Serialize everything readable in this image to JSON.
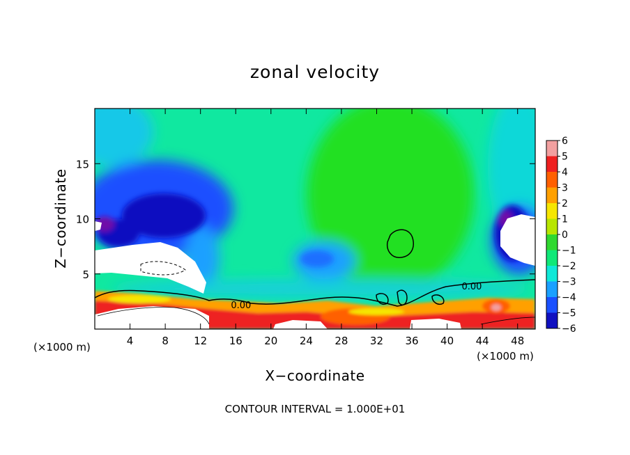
{
  "chart_data": {
    "type": "heatmap",
    "title": "zonal velocity",
    "xlabel": "X−coordinate",
    "ylabel": "Z−coordinate",
    "x_units_left": "(×1000 m)",
    "x_units_right": "(×1000 m)",
    "xlim": [
      0,
      50
    ],
    "ylim": [
      0,
      20
    ],
    "x_ticks": [
      4,
      8,
      12,
      16,
      20,
      24,
      28,
      32,
      36,
      40,
      44,
      48
    ],
    "x_tick_labels": [
      "4",
      "8",
      "12",
      "16",
      "20",
      "24",
      "28",
      "32",
      "36",
      "40",
      "44",
      "48"
    ],
    "y_ticks": [
      5,
      10,
      15
    ],
    "y_tick_labels": [
      "5",
      "10",
      "15"
    ],
    "colorbar": {
      "levels": [
        6,
        5,
        4,
        3,
        2,
        1,
        0,
        -1,
        -2,
        -3,
        -4,
        -5,
        -6
      ],
      "labels": [
        "6",
        "5",
        "4",
        "3",
        "2",
        "1",
        "0",
        "−1",
        "−2",
        "−3",
        "−4",
        "−5",
        "−6"
      ],
      "colors": [
        "#f2a0a0",
        "#ee2020",
        "#ff6000",
        "#ffa000",
        "#f6e600",
        "#b8e600",
        "#30d830",
        "#10e878",
        "#10e8d8",
        "#1aa0ff",
        "#1a50ff",
        "#1010c0",
        "#7010a8"
      ]
    },
    "contour_labels": [
      {
        "text": "0.00",
        "x": 16.6,
        "y": 2.2
      },
      {
        "text": "0.00",
        "x": 42.8,
        "y": 3.9
      }
    ],
    "contour_interval_text": "CONTOUR INTERVAL = 1.000E+01"
  }
}
